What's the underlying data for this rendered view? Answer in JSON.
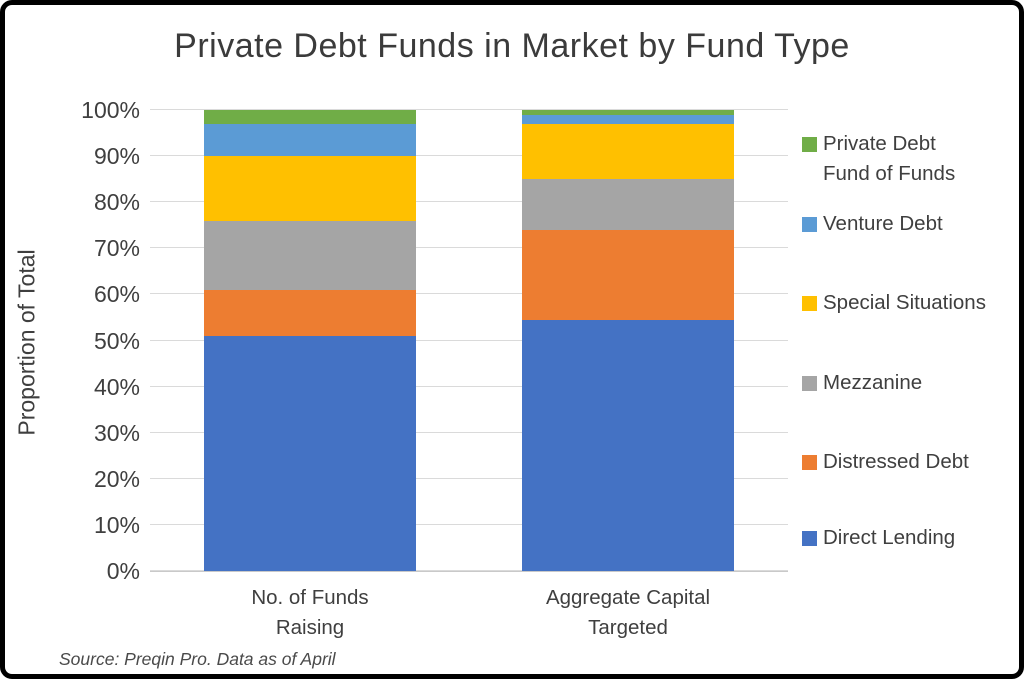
{
  "chart_data": {
    "type": "bar",
    "stacked": true,
    "percent_stacked": true,
    "title": "Private Debt Funds in Market by Fund Type",
    "xlabel": "",
    "ylabel": "Proportion of Total",
    "ylim": [
      0,
      100
    ],
    "ytick_labels": [
      "0%",
      "10%",
      "20%",
      "30%",
      "40%",
      "50%",
      "60%",
      "70%",
      "80%",
      "90%",
      "100%"
    ],
    "grid": true,
    "categories": [
      "No. of Funds\nRaising",
      "Aggregate Capital\nTargeted"
    ],
    "series": [
      {
        "name": "Direct Lending",
        "color": "#4472C4",
        "values": [
          51,
          54.5
        ]
      },
      {
        "name": "Distressed Debt",
        "color": "#ED7D31",
        "values": [
          10,
          19.5
        ]
      },
      {
        "name": "Mezzanine",
        "color": "#A5A5A5",
        "values": [
          15,
          11
        ]
      },
      {
        "name": "Special Situations",
        "color": "#FFC000",
        "values": [
          14,
          12
        ]
      },
      {
        "name": "Venture Debt",
        "color": "#5B9BD5",
        "values": [
          7,
          2
        ]
      },
      {
        "name": "Private Debt Fund of Funds",
        "color": "#70AD47",
        "values": [
          3,
          1
        ]
      }
    ],
    "legend_position": "right",
    "legend_items": [
      {
        "label": "Private Debt\nFund of Funds",
        "color": "#70AD47"
      },
      {
        "label": "Venture Debt",
        "color": "#5B9BD5"
      },
      {
        "label": "Special Situations",
        "color": "#FFC000"
      },
      {
        "label": "Mezzanine",
        "color": "#A5A5A5"
      },
      {
        "label": "Distressed Debt",
        "color": "#ED7D31"
      },
      {
        "label": "Direct Lending",
        "color": "#4472C4"
      }
    ]
  },
  "footer": {
    "source": "Source: Preqin Pro. Data as of April"
  },
  "colors": {
    "background": "#FFFFFF",
    "border": "#000000",
    "gridline": "#DADADA",
    "axis_line": "#C9C9C9",
    "text": "#3F3F3F"
  }
}
